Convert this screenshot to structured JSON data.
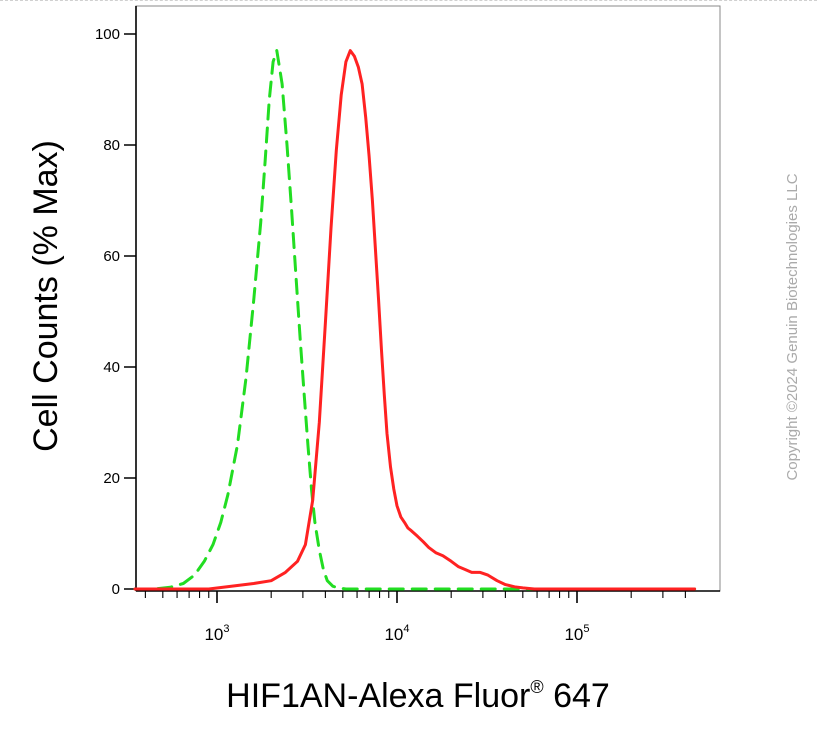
{
  "chart_data": {
    "type": "line",
    "xlabel": "HIF1AN-Alexa Fluor® 647",
    "xlabel_main": "HIF1AN-Alexa Fluor",
    "xlabel_sup": "®",
    "xlabel_tail": " 647",
    "ylabel": "Cell Counts (% Max)",
    "x_scale": "log",
    "xlim": [
      350,
      450000
    ],
    "ylim": [
      0,
      104
    ],
    "yticks": [
      0,
      20,
      40,
      60,
      80,
      100
    ],
    "ytick_labels": [
      "0",
      "20",
      "40",
      "60",
      "80",
      "100"
    ],
    "xticks": [
      {
        "value": 1000,
        "base": "10",
        "exp": "3"
      },
      {
        "value": 10000,
        "base": "10",
        "exp": "4"
      },
      {
        "value": 100000,
        "base": "10",
        "exp": "5"
      }
    ],
    "grid": false,
    "series": [
      {
        "color": "#22dd22",
        "style": "dashed",
        "x": [
          350,
          450,
          550,
          650,
          750,
          850,
          950,
          1050,
          1150,
          1300,
          1450,
          1600,
          1750,
          1850,
          1950,
          2050,
          2150,
          2300,
          2450,
          2600,
          2750,
          2900,
          3050,
          3200,
          3350,
          3500,
          3700,
          3900,
          4100,
          4400,
          4700,
          5200,
          6000,
          8000,
          15000,
          40000,
          100000,
          450000
        ],
        "y": [
          0,
          0,
          0.3,
          1,
          2.5,
          5,
          8,
          12,
          17,
          26,
          38,
          52,
          66,
          77,
          88,
          95,
          97,
          91,
          80,
          68,
          56,
          45,
          35,
          26,
          18,
          12,
          7,
          3.5,
          1.5,
          0.5,
          0.2,
          0,
          0,
          0,
          0,
          0,
          0,
          0
        ]
      },
      {
        "color": "#ff2222",
        "style": "solid",
        "x": [
          350,
          600,
          900,
          1200,
          1600,
          2000,
          2400,
          2800,
          3100,
          3400,
          3700,
          4000,
          4300,
          4600,
          4900,
          5200,
          5500,
          5800,
          6100,
          6400,
          6700,
          7000,
          7300,
          7600,
          7900,
          8200,
          8500,
          8800,
          9200,
          9600,
          10000,
          10500,
          11000,
          11500,
          12000,
          13000,
          14000,
          15000,
          16500,
          18000,
          20000,
          22000,
          24000,
          26000,
          29000,
          32000,
          36000,
          40000,
          45000,
          50000,
          58000,
          66000,
          80000,
          100000,
          150000,
          250000,
          450000
        ],
        "y": [
          0,
          0,
          0,
          0.5,
          1,
          1.5,
          3,
          5,
          8,
          16,
          30,
          48,
          65,
          79,
          89,
          95,
          97,
          96,
          94,
          91,
          85,
          78,
          70,
          61,
          52,
          43,
          35,
          28,
          22,
          18,
          15,
          13,
          12,
          11,
          10.5,
          9.5,
          8.5,
          7.5,
          6.5,
          6,
          5,
          4,
          3.5,
          3,
          3,
          2.5,
          1.5,
          0.8,
          0.4,
          0.2,
          0,
          0,
          0,
          0,
          0,
          0,
          0
        ]
      }
    ]
  },
  "copyright": "Copyright ©2024 Genuin Biotechnologies LLC"
}
